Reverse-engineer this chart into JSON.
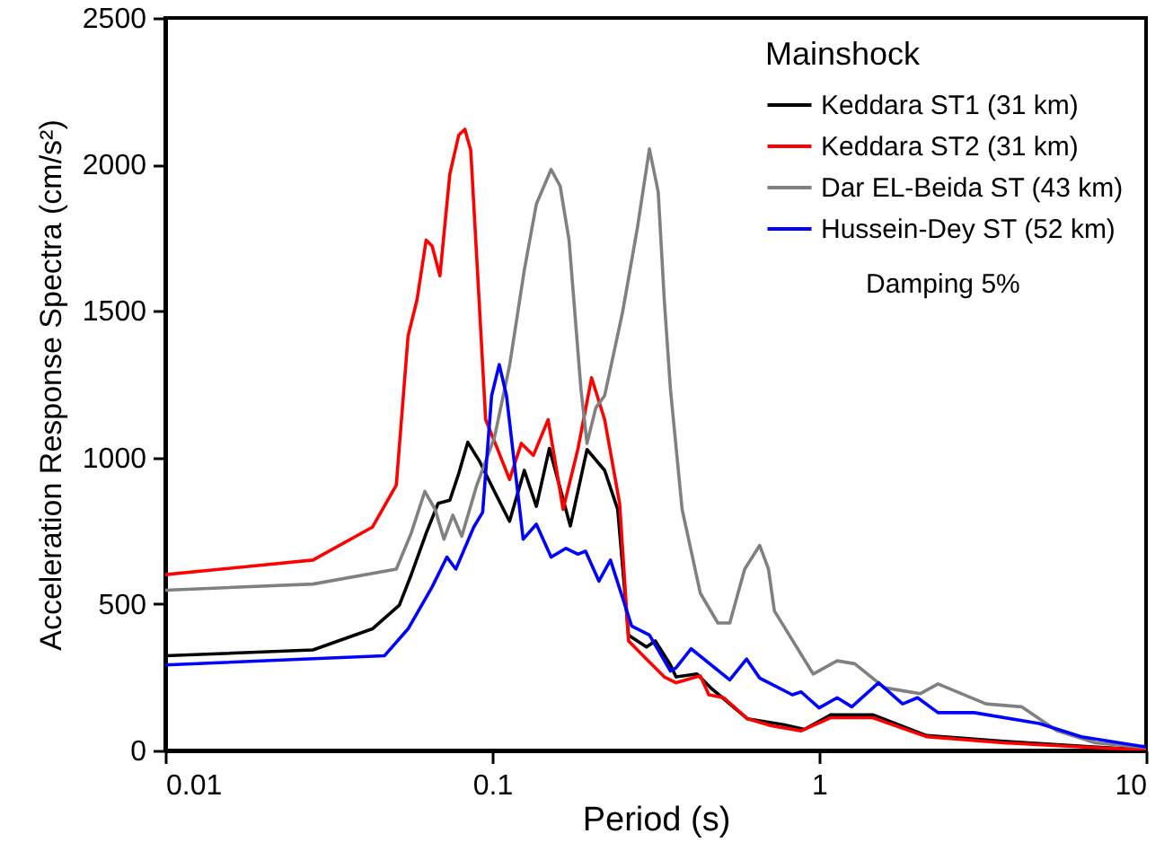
{
  "chart_data": {
    "type": "line",
    "xlabel": "Period (s)",
    "ylabel": "Acceleration Response Spectra (cm/s²)",
    "legend_title": "Mainshock",
    "annotations": [
      "Damping 5%"
    ],
    "log": "x",
    "xlim": [
      0.01,
      10
    ],
    "xticks": [
      0.01,
      0.1,
      1,
      10
    ],
    "ylim": [
      0,
      2500
    ],
    "yticks": [
      0,
      500,
      1000,
      1500,
      2000,
      2500
    ],
    "grid": false,
    "legend": "top right",
    "line_style": "solid",
    "marker": "none",
    "series": [
      {
        "name": "Keddara ST1 (31 km)",
        "color": "#000000",
        "x": [
          0.01,
          0.0283,
          0.043,
          0.052,
          0.0565,
          0.0628,
          0.0683,
          0.0742,
          0.079,
          0.0842,
          0.0916,
          0.1016,
          0.113,
          0.1254,
          0.1365,
          0.1496,
          0.1734,
          0.195,
          0.2208,
          0.242,
          0.2612,
          0.2964,
          0.3155,
          0.351,
          0.365,
          0.423,
          0.47,
          0.604,
          0.778,
          0.901,
          1.088,
          1.459,
          2.13,
          3.67,
          6.88,
          10
        ],
        "values": [
          323,
          343,
          415,
          496,
          599,
          741,
          843,
          854,
          945,
          1052,
          986,
          884,
          782,
          956,
          833,
          1031,
          766,
          1027,
          956,
          823,
          394,
          353,
          374,
          292,
          251,
          261,
          210,
          108,
          88,
          72,
          122,
          122,
          51,
          31,
          12,
          2
        ]
      },
      {
        "name": "Keddara ST2 (31 km)",
        "color": "#ff0000",
        "x": [
          0.01,
          0.0283,
          0.043,
          0.0509,
          0.0553,
          0.0589,
          0.0628,
          0.0655,
          0.0692,
          0.0742,
          0.079,
          0.0825,
          0.086,
          0.0916,
          0.0955,
          0.1038,
          0.113,
          0.1228,
          0.1336,
          0.1483,
          0.1648,
          0.1829,
          0.2014,
          0.2208,
          0.2454,
          0.2612,
          0.2964,
          0.336,
          0.365,
          0.433,
          0.46,
          0.511,
          0.604,
          0.715,
          0.881,
          1.088,
          1.459,
          2.13,
          3.67,
          6.88,
          10
        ],
        "values": [
          600,
          650,
          762,
          906,
          1415,
          1538,
          1742,
          1722,
          1620,
          1967,
          2100,
          2120,
          2048,
          1497,
          1129,
          1029,
          925,
          1048,
          1007,
          1129,
          823,
          1029,
          1272,
          1129,
          843,
          374,
          312,
          251,
          231,
          255,
          190,
          180,
          108,
          84,
          67,
          112,
          112,
          47,
          26,
          10,
          2
        ]
      },
      {
        "name": "Dar EL-Beida ST (43 km)",
        "color": "#808080",
        "x": [
          0.01,
          0.0283,
          0.0509,
          0.0565,
          0.0622,
          0.0669,
          0.0712,
          0.0758,
          0.0807,
          0.0897,
          0.1016,
          0.113,
          0.1254,
          0.1365,
          0.1514,
          0.1614,
          0.1718,
          0.1869,
          0.195,
          0.2075,
          0.2208,
          0.2506,
          0.278,
          0.3026,
          0.322,
          0.336,
          0.351,
          0.381,
          0.433,
          0.49,
          0.533,
          0.592,
          0.658,
          0.7,
          0.73,
          0.959,
          1.135,
          1.285,
          1.585,
          2.04,
          2.31,
          3.24,
          4.16,
          5.35,
          7,
          10
        ],
        "values": [
          547,
          568,
          619,
          741,
          884,
          823,
          721,
          803,
          731,
          905,
          1068,
          1313,
          1640,
          1865,
          1983,
          1926,
          1742,
          1232,
          1048,
          1170,
          1211,
          1497,
          1783,
          2053,
          1906,
          1538,
          1232,
          823,
          537,
          435,
          435,
          619,
          700,
          619,
          476,
          261,
          306,
          296,
          214,
          194,
          227,
          159,
          149,
          67,
          26,
          10
        ]
      },
      {
        "name": "Hussein-Dey ST (52 km)",
        "color": "#0000ff",
        "x": [
          0.01,
          0.0468,
          0.0553,
          0.0655,
          0.0727,
          0.0774,
          0.0878,
          0.0935,
          0.0996,
          0.1051,
          0.1106,
          0.1244,
          0.1365,
          0.1514,
          0.1682,
          0.1829,
          0.193,
          0.212,
          0.23,
          0.267,
          0.3026,
          0.351,
          0.365,
          0.406,
          0.533,
          0.6,
          0.658,
          0.828,
          0.881,
          1.0,
          1.135,
          1.259,
          1.52,
          1.8,
          2.0,
          2.31,
          2.98,
          4.72,
          6.34,
          10
        ],
        "values": [
          292,
          323,
          415,
          558,
          660,
          619,
          762,
          813,
          1211,
          1317,
          1211,
          721,
          772,
          660,
          690,
          670,
          680,
          578,
          650,
          425,
          394,
          271,
          282,
          347,
          241,
          312,
          247,
          190,
          200,
          145,
          180,
          149,
          231,
          159,
          180,
          129,
          129,
          92,
          47,
          12
        ]
      }
    ]
  }
}
